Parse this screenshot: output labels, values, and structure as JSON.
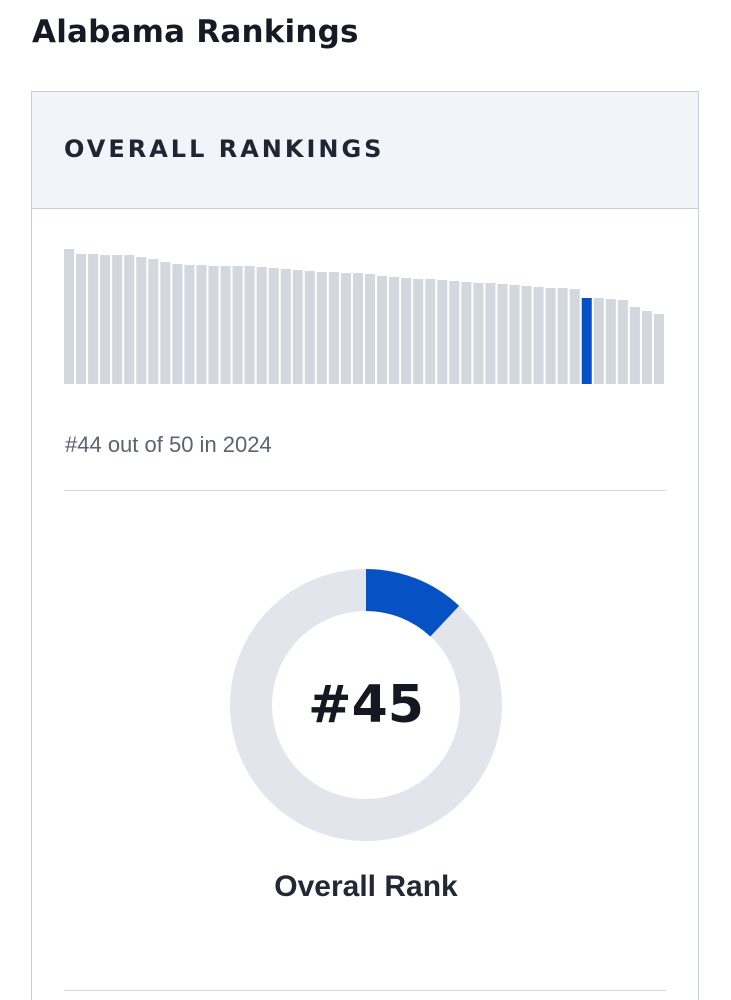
{
  "page": {
    "title": "Alabama Rankings"
  },
  "card": {
    "header_title": "OVERALL RANKINGS",
    "rank_caption": "#44 out of 50 in 2024",
    "overall_rank_value": "#45",
    "overall_rank_label": "Overall Rank"
  },
  "colors": {
    "bar": "#d3d7de",
    "highlight": "#0652c4",
    "donut_track": "#e2e6ec",
    "donut_fill": "#0652c4"
  },
  "chart_data": [
    {
      "type": "bar",
      "highlight_rank": 44,
      "total": 50,
      "values": [
        135,
        130,
        130,
        129,
        129,
        129,
        127,
        125,
        122,
        120,
        119,
        119,
        118,
        118,
        118,
        118,
        117,
        116,
        115,
        114,
        113,
        112,
        112,
        111,
        111,
        110,
        108,
        107,
        106,
        105,
        105,
        104,
        103,
        102,
        101,
        101,
        100,
        99,
        98,
        97,
        96,
        96,
        95,
        86,
        86,
        85,
        84,
        77,
        73,
        70
      ]
    },
    {
      "type": "pie",
      "donut": true,
      "rank": 45,
      "total": 50,
      "fill_fraction": 0.12
    }
  ]
}
